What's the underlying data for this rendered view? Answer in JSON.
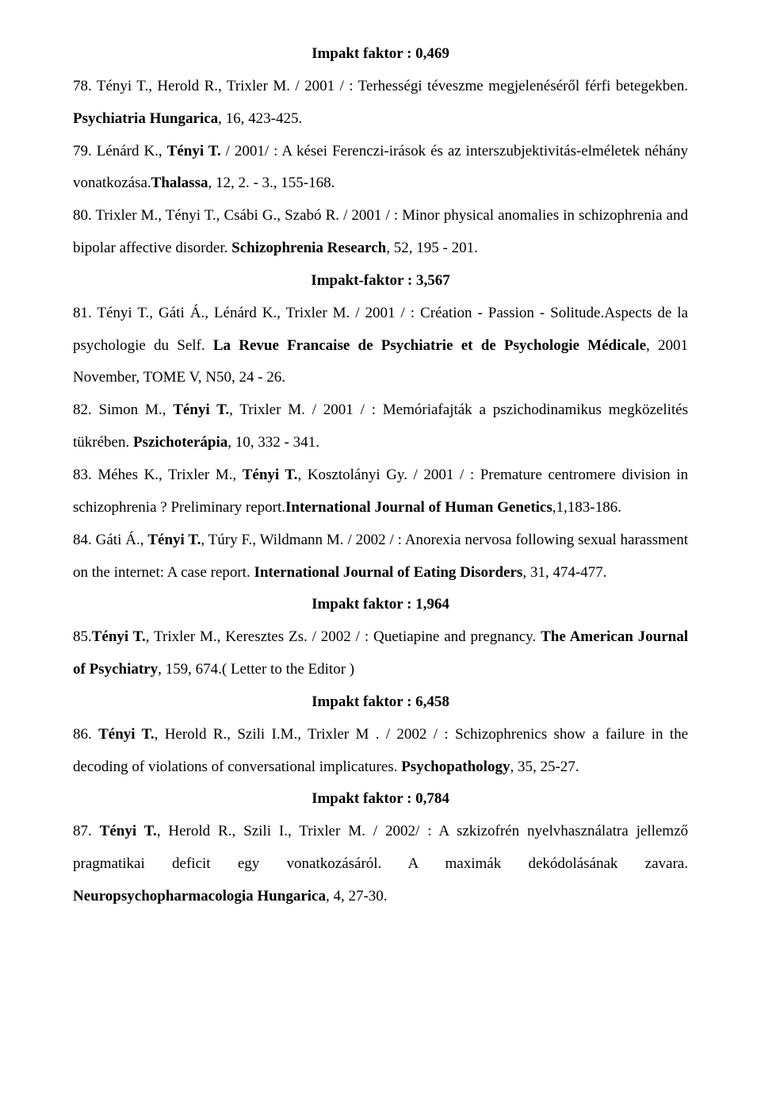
{
  "heading1": "Impakt faktor  : 0,469",
  "p78": {
    "t1": "78. Tényi T., Herold R., Trixler M. / 2001 / : Terhességi téveszme megjelenéséről férfi betegekben. ",
    "t2": "Psychiatria Hungarica",
    "t3": ", 16, 423-425."
  },
  "p79": {
    "t1": "79. Lénárd K., ",
    "t2": "Tényi T.",
    "t3": " / 2001/ : A kései Ferenczi-irások és az interszubjektivitás-elméletek néhány vonatkozása.",
    "t4": "Thalassa",
    "t5": ", 12, 2. - 3., 155-168."
  },
  "p80": {
    "t1": "80. Trixler M., Tényi T., Csábi G., Szabó R. / 2001 / : Minor physical anomalies in schizophrenia and bipolar affective disorder. ",
    "t2": "Schizophrenia Research",
    "t3": ", 52, 195 - 201."
  },
  "heading2": "Impakt-faktor : 3,567",
  "p81": {
    "t1": "81. Tényi T., Gáti Á., Lénárd K., Trixler M. / 2001 / : Création - Passion - Solitude.Aspects de la psychologie du Self.  ",
    "t2": "La Revue Francaise de Psychiatrie et de Psychologie Médicale",
    "t3": ", 2001 November, TOME V, N50, 24 - 26."
  },
  "p82": {
    "t1": "82. Simon M., ",
    "t2": "Tényi T.",
    "t3": ", Trixler M. / 2001 / : Memóriafajták a pszichodinamikus megközelités tükrében. ",
    "t4": "Pszichoterápia",
    "t5": ", 10, 332 - 341."
  },
  "p83": {
    "t1": "83. Méhes K., Trixler M., ",
    "t2": "Tényi T.",
    "t3": ", Kosztolányi Gy. / 2001 / : Premature centromere division in schizophrenia ? Preliminary report.",
    "t4": "International Journal of Human Genetics",
    "t5": ",1,183-186."
  },
  "p84": {
    "t1": "84. Gáti Á., ",
    "t2": "Tényi T.",
    "t3": ", Túry F., Wildmann M. / 2002 / : Anorexia nervosa following sexual harassment on the internet: A case report. ",
    "t4": "International Journal of Eating Disorders",
    "t5": ", 31, 474-477."
  },
  "heading3": "Impakt faktor  : 1,964",
  "p85": {
    "t1": "85.",
    "t2": "Tényi T.",
    "t3": ", Trixler M., Keresztes Zs. / 2002 / : Quetiapine and pregnancy. ",
    "t4": "The American Journal of Psychiatry",
    "t5": ", 159, 674.( Letter to the Editor )"
  },
  "heading4": "Impakt faktor : 6,458",
  "p86": {
    "t1": "86. ",
    "t2": "Tényi T.",
    "t3": ", Herold R., Szili I.M., Trixler M . / 2002 / : Schizophrenics show a failure in the decoding of violations of conversational implicatures. ",
    "t4": "Psychopathology",
    "t5": ", 35, 25-27."
  },
  "heading5": "Impakt faktor : 0,784",
  "p87": {
    "t1": "87. ",
    "t2": "Tényi T.",
    "t3": ", Herold R., Szili I., Trixler M. / 2002/ : A szkizofrén nyelvhasználatra jellemző pragmatikai deficit egy vonatkozásáról. A maximák dekódolásának zavara. ",
    "t4": "Neuropsychopharmacologia Hungarica",
    "t5": ", 4, 27-30."
  }
}
